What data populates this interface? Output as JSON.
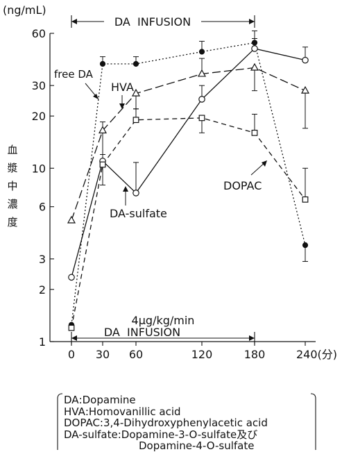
{
  "chart_data": {
    "type": "line",
    "y_unit_label": "(ng/mL)",
    "ylabel": "血漿中濃度",
    "y_scale": "log",
    "ylim": [
      1,
      60
    ],
    "y_ticks": [
      1,
      2,
      3,
      6,
      10,
      20,
      30,
      60
    ],
    "x_categories": [
      "0",
      "30",
      "60",
      "120",
      "180",
      "240(分)"
    ],
    "infusion_top_label": "DA  INFUSION",
    "infusion_bottom_rate": "4μg/kg/min",
    "infusion_bottom_label": "DA  INFUSION",
    "series": [
      {
        "name": "free DA",
        "style": "dotted",
        "marker": "filled-circle",
        "values": [
          1.25,
          40,
          40,
          47,
          53,
          3.6
        ],
        "err": [
          null,
          44,
          44,
          54,
          62,
          2.9
        ]
      },
      {
        "name": "HVA",
        "style": "long-dash",
        "marker": "triangle",
        "values": [
          5,
          16.5,
          27,
          35,
          38,
          28
        ],
        "err": [
          null,
          12,
          22,
          43,
          28,
          17
        ]
      },
      {
        "name": "DA-sulfate",
        "style": "solid",
        "marker": "open-circle",
        "values": [
          2.35,
          11,
          7.2,
          25,
          49,
          42
        ],
        "err": [
          null,
          18.5,
          10.8,
          30,
          56,
          50
        ]
      },
      {
        "name": "DOPAC",
        "style": "short-dash",
        "marker": "square",
        "values": [
          1.2,
          10.5,
          19,
          19.5,
          16,
          6.6
        ],
        "err": [
          null,
          8,
          22,
          16,
          20.5,
          10
        ]
      }
    ],
    "series_labels": {
      "free_da": "free DA",
      "hva": "HVA",
      "da_sulfate": "DA-sulfate",
      "dopac": "DOPAC"
    }
  },
  "legend": {
    "rows": [
      {
        "abbr": "DA",
        "sep": ":",
        "text": "Dopamine"
      },
      {
        "abbr": "HVA",
        "sep": ":",
        "text": "Homovanillic acid"
      },
      {
        "abbr": "DOPAC",
        "sep": ":",
        "text": "3,4-Dihydroxyphenylacetic acid"
      },
      {
        "abbr": "DA-sulfate",
        "sep": ":",
        "text": "Dopamine-3-O-sulfate及び"
      }
    ],
    "continuation": "Dopamine-4-O-sulfate"
  }
}
